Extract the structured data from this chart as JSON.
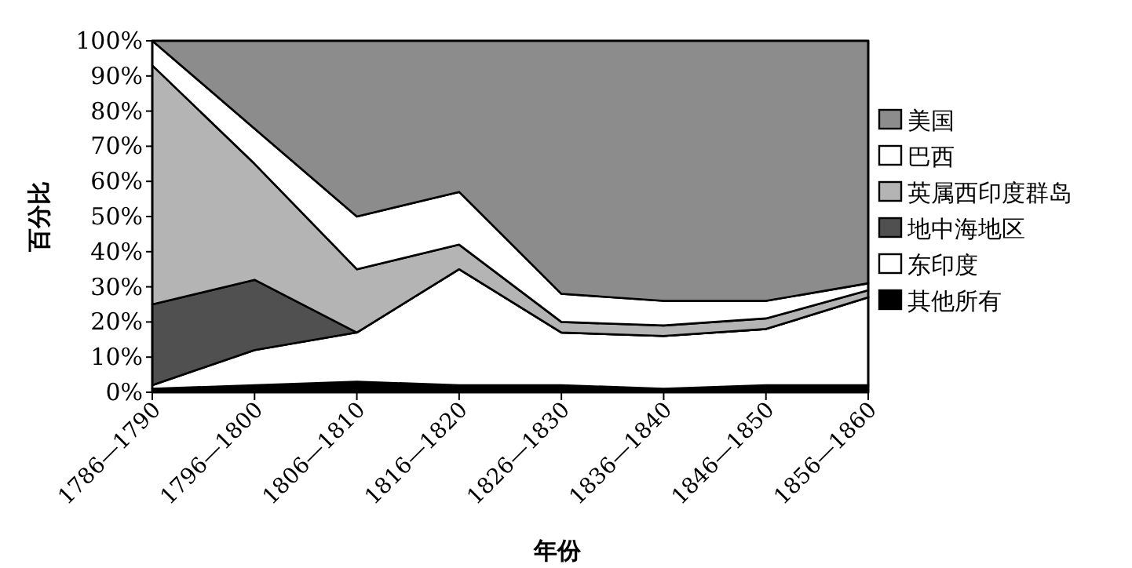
{
  "chart_data": {
    "type": "area",
    "stacked": true,
    "xlabel": "年份",
    "ylabel": "百分比",
    "categories": [
      "1786—1790",
      "1796—1800",
      "1806—1810",
      "1816—1820",
      "1826—1830",
      "1836—1840",
      "1846—1850",
      "1856—1860"
    ],
    "series": [
      {
        "name": "其他所有",
        "color": "#000000",
        "values": [
          1,
          2,
          3,
          2,
          2,
          1,
          2,
          2
        ]
      },
      {
        "name": "东印度",
        "color": "#ffffff",
        "values": [
          1,
          10,
          14,
          33,
          15,
          15,
          16,
          25
        ]
      },
      {
        "name": "地中海地区",
        "color": "#505050",
        "values": [
          23,
          20,
          0,
          0,
          0,
          0,
          0,
          0
        ]
      },
      {
        "name": "英属西印度群岛",
        "color": "#b4b4b4",
        "values": [
          68,
          33,
          18,
          7,
          3,
          3,
          3,
          2
        ]
      },
      {
        "name": "巴西",
        "color": "#ffffff",
        "values": [
          7,
          10,
          15,
          15,
          8,
          7,
          5,
          2
        ]
      },
      {
        "name": "美国",
        "color": "#8c8c8c",
        "values": [
          0,
          25,
          50,
          43,
          72,
          74,
          74,
          69
        ]
      }
    ],
    "ylim": [
      0,
      100
    ],
    "yticks": [
      {
        "value": 0,
        "label": "0%"
      },
      {
        "value": 10,
        "label": "10%"
      },
      {
        "value": 20,
        "label": "20%"
      },
      {
        "value": 30,
        "label": "30%"
      },
      {
        "value": 40,
        "label": "40%"
      },
      {
        "value": 50,
        "label": "50%"
      },
      {
        "value": 60,
        "label": "60%"
      },
      {
        "value": 70,
        "label": "70%"
      },
      {
        "value": 80,
        "label": "80%"
      },
      {
        "value": 90,
        "label": "90%"
      },
      {
        "value": 100,
        "label": "100%"
      }
    ],
    "legend": "right",
    "grid": false,
    "marker": "none"
  }
}
